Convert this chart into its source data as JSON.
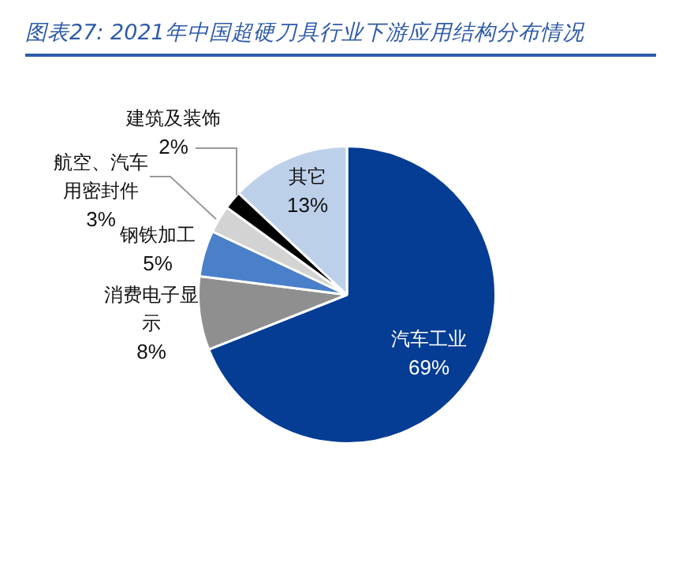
{
  "chart_data": {
    "type": "pie",
    "title": "图表27: 2021年中国超硬刀具行业下游应用结构分布情况",
    "categories": [
      "汽车工业",
      "消费电子显示",
      "钢铁加工",
      "航空、汽车用密封件",
      "建筑及装饰",
      "其它"
    ],
    "values": [
      69,
      8,
      5,
      3,
      2,
      13
    ],
    "value_labels": [
      "69%",
      "8%",
      "5%",
      "3%",
      "2%",
      "13%"
    ],
    "colors": [
      "#053c94",
      "#8f8f8f",
      "#4a7fc9",
      "#d3d3d3",
      "#000000",
      "#bdd0ea"
    ],
    "legend": false
  }
}
